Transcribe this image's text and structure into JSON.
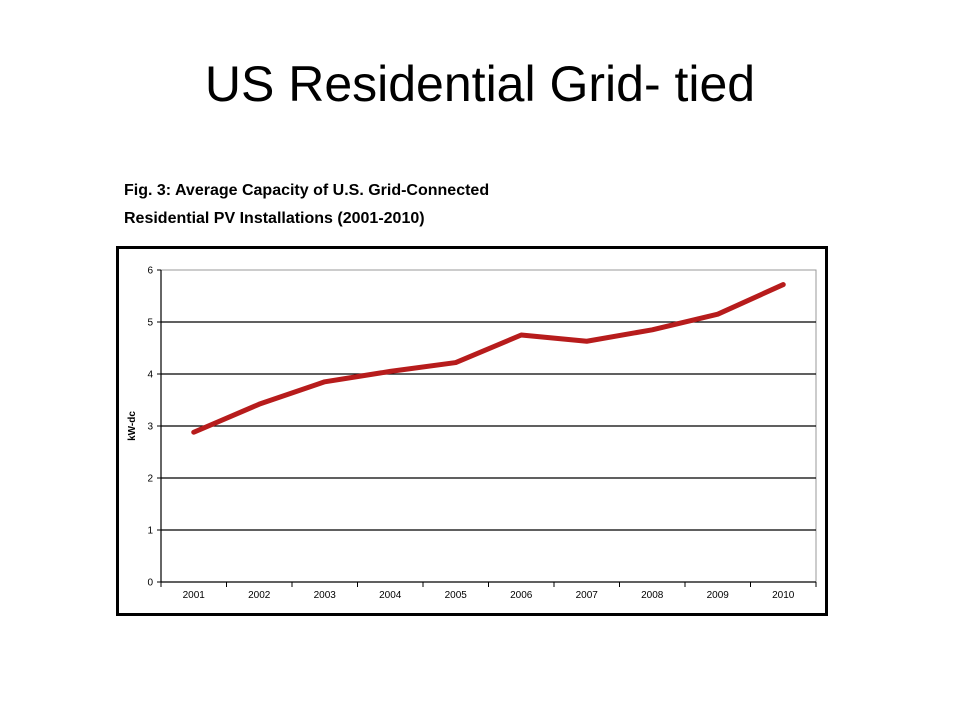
{
  "slide": {
    "title": "US Residential Grid- tied"
  },
  "caption": {
    "line1": "Fig. 3: Average Capacity of U.S. Grid-Connected",
    "line2": "Residential PV Installations (2001-2010)"
  },
  "chart_data": {
    "type": "line",
    "title": "Fig. 3: Average Capacity of U.S. Grid-Connected Residential PV Installations (2001-2010)",
    "xlabel": "",
    "ylabel": "kW-dc",
    "categories": [
      "2001",
      "2002",
      "2003",
      "2004",
      "2005",
      "2006",
      "2007",
      "2008",
      "2009",
      "2010"
    ],
    "series": [
      {
        "values": [
          2.88,
          3.42,
          3.85,
          4.05,
          4.22,
          4.75,
          4.63,
          4.85,
          5.15,
          5.72
        ],
        "color": "#b71c1c"
      }
    ],
    "ylim": [
      0,
      6
    ],
    "yticks": [
      0,
      1,
      2,
      3,
      4,
      5,
      6
    ],
    "grid": true,
    "legend": "none"
  }
}
